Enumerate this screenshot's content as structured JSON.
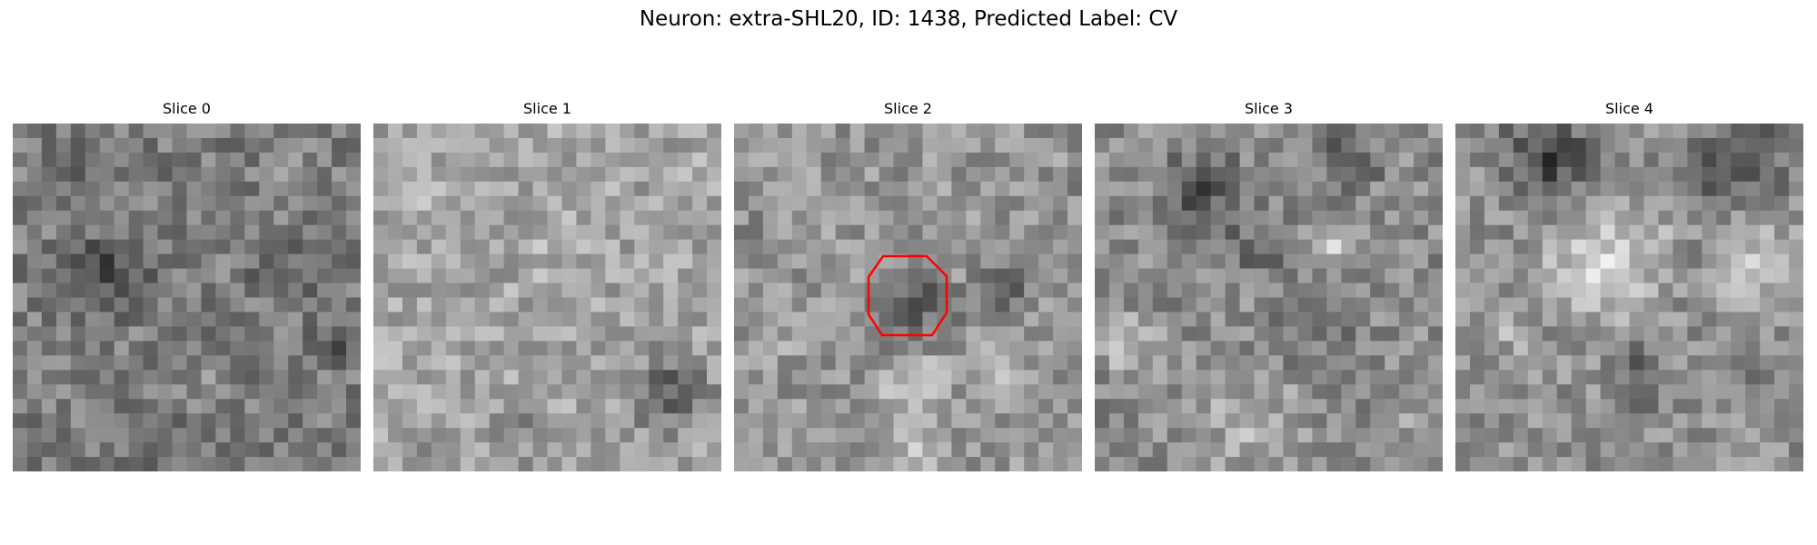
{
  "figure": {
    "title": "Neuron: extra-SHL20, ID: 1438, Predicted Label: CV"
  },
  "slices": [
    {
      "title": "Slice 0"
    },
    {
      "title": "Slice 1"
    },
    {
      "title": "Slice 2",
      "roi_outline_color": "#ff0000"
    },
    {
      "title": "Slice 3"
    },
    {
      "title": "Slice 4"
    }
  ],
  "colormap": "gray"
}
